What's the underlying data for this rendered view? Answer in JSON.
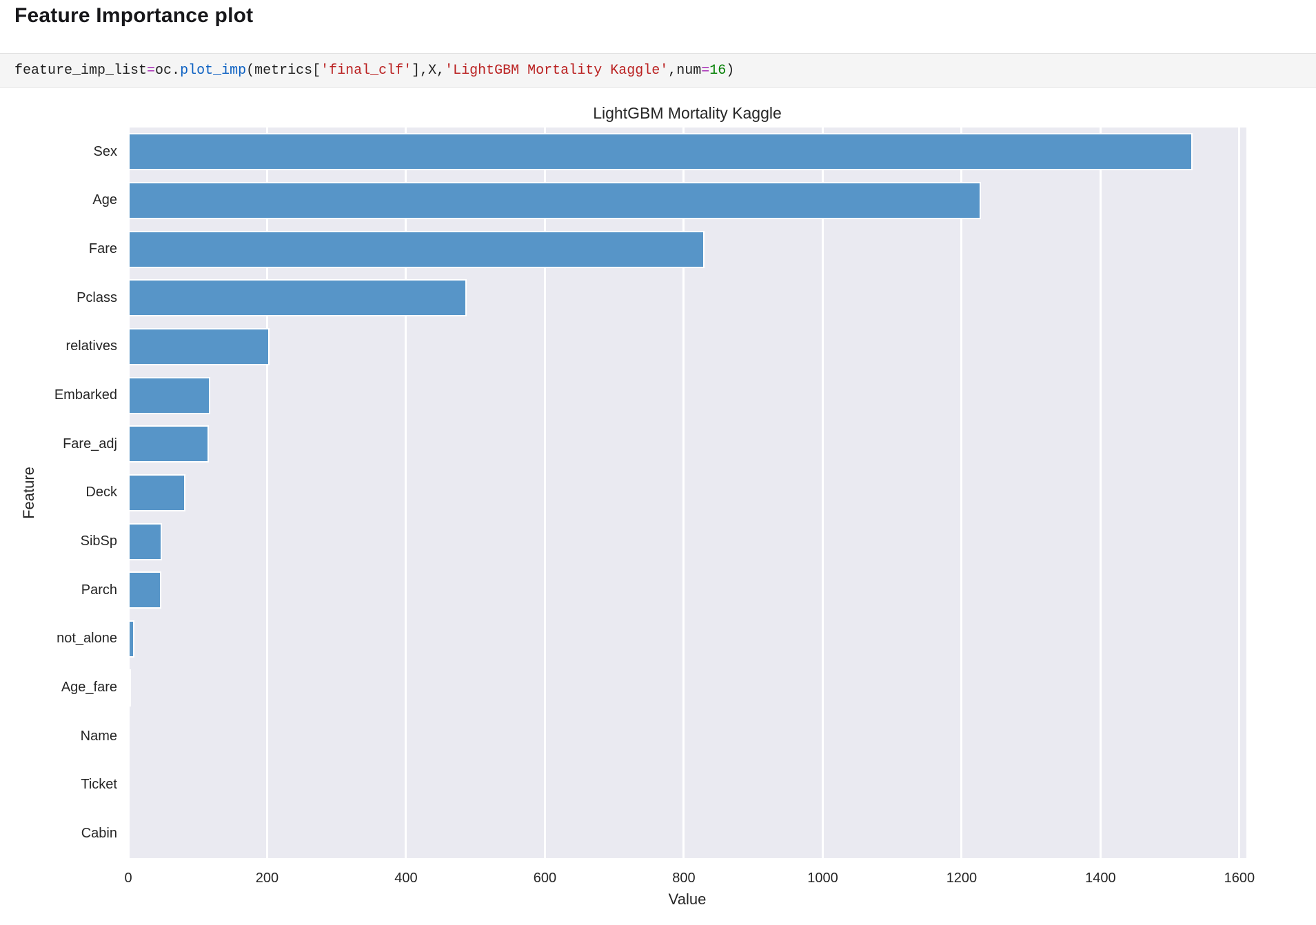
{
  "header": {
    "title": "Feature Importance plot"
  },
  "code_cell": {
    "text": "feature_imp_list=oc.plot_imp(metrics['final_clf'],X,'LightGBM Mortality Kaggle',num=16)",
    "tokens": [
      {
        "t": "feature_imp_list",
        "c": "plain"
      },
      {
        "t": "=",
        "c": "op"
      },
      {
        "t": "oc.",
        "c": "plain"
      },
      {
        "t": "plot_imp",
        "c": "func"
      },
      {
        "t": "(metrics[",
        "c": "plain"
      },
      {
        "t": "'final_clf'",
        "c": "str"
      },
      {
        "t": "],X,",
        "c": "plain"
      },
      {
        "t": "'LightGBM Mortality Kaggle'",
        "c": "str"
      },
      {
        "t": ",num",
        "c": "plain"
      },
      {
        "t": "=",
        "c": "op"
      },
      {
        "t": "16",
        "c": "num"
      },
      {
        "t": ")",
        "c": "plain"
      }
    ]
  },
  "chart_data": {
    "type": "bar",
    "orientation": "horizontal",
    "title": "LightGBM Mortality Kaggle",
    "xlabel": "Value",
    "ylabel": "Feature",
    "categories": [
      "Sex",
      "Age",
      "Fare",
      "Pclass",
      "relatives",
      "Embarked",
      "Fare_adj",
      "Deck",
      "SibSp",
      "Parch",
      "not_alone",
      "Age_fare",
      "Name",
      "Ticket",
      "Cabin"
    ],
    "values": [
      1533,
      1228,
      830,
      487,
      203,
      118,
      116,
      82,
      49,
      48,
      9,
      2,
      0,
      0,
      0
    ],
    "xlim": [
      0,
      1610
    ],
    "xticks": [
      0,
      200,
      400,
      600,
      800,
      1000,
      1200,
      1400,
      1600
    ],
    "grid": true,
    "legend": null,
    "bar_color": "#5795c8",
    "plot_bg": "#eaeaf1",
    "grid_color": "#ffffff",
    "text_color": "#262626"
  }
}
